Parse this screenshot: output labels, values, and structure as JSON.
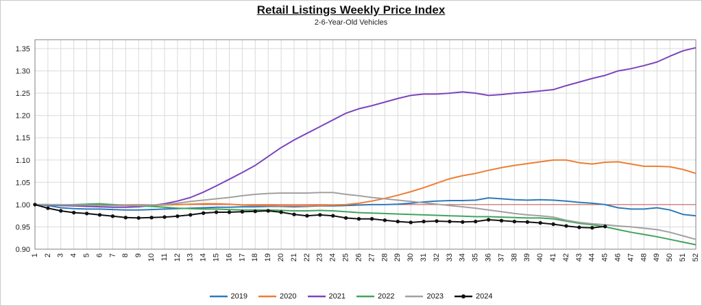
{
  "header": {
    "title": "Retail Listings Weekly Price Index",
    "subtitle": "2-6-Year-Old Vehicles"
  },
  "chart_data": {
    "type": "line",
    "title": "Retail Listings Weekly Price Index",
    "subtitle": "2-6-Year-Old Vehicles",
    "xlabel": "",
    "ylabel": "",
    "ylim": [
      0.9,
      1.37
    ],
    "yticks": [
      0.9,
      0.95,
      1.0,
      1.05,
      1.1,
      1.15,
      1.2,
      1.25,
      1.3,
      1.35
    ],
    "grid": true,
    "legend_position": "bottom",
    "ref_line": {
      "value": 1.0,
      "color": "#c0504d"
    },
    "colors": {
      "grid": "#d9d9d9",
      "plot_border": "#7f7f7f",
      "axis_text": "#1a1a1a"
    },
    "categories": [
      "1",
      "2",
      "3",
      "4",
      "5",
      "6",
      "7",
      "8",
      "9",
      "10",
      "11",
      "12",
      "13",
      "14",
      "15",
      "16",
      "17",
      "18",
      "19",
      "20",
      "21",
      "22",
      "23",
      "24",
      "25",
      "26",
      "27",
      "28",
      "29",
      "30",
      "31",
      "32",
      "33",
      "34",
      "35",
      "36",
      "37",
      "38",
      "39",
      "40",
      "41",
      "42",
      "43",
      "44",
      "45",
      "46",
      "47",
      "48",
      "49",
      "50",
      "51",
      "52"
    ],
    "series": [
      {
        "name": "2019",
        "color": "#2e79b8",
        "markers": false,
        "values": [
          1.0,
          0.998,
          0.993,
          0.991,
          0.99,
          0.99,
          0.989,
          0.988,
          0.988,
          0.989,
          0.99,
          0.991,
          0.992,
          0.993,
          0.994,
          0.994,
          0.995,
          0.995,
          0.996,
          0.996,
          0.995,
          0.996,
          0.997,
          0.997,
          0.998,
          0.999,
          1.0,
          1.0,
          1.001,
          1.003,
          1.006,
          1.008,
          1.009,
          1.009,
          1.01,
          1.015,
          1.013,
          1.011,
          1.01,
          1.011,
          1.01,
          1.008,
          1.005,
          1.003,
          1.0,
          0.993,
          0.99,
          0.99,
          0.993,
          0.988,
          0.978,
          0.975
        ]
      },
      {
        "name": "2020",
        "color": "#ed7d31",
        "markers": false,
        "values": [
          1.0,
          1.0,
          0.999,
          0.999,
          0.998,
          0.999,
          0.999,
          0.999,
          0.998,
          0.998,
          0.999,
          1.0,
          1.001,
          1.002,
          1.002,
          1.001,
          0.999,
          0.998,
          0.998,
          0.997,
          0.997,
          0.997,
          0.998,
          0.999,
          1.0,
          1.003,
          1.008,
          1.014,
          1.021,
          1.029,
          1.038,
          1.048,
          1.058,
          1.065,
          1.07,
          1.077,
          1.083,
          1.088,
          1.092,
          1.096,
          1.1,
          1.1,
          1.094,
          1.091,
          1.095,
          1.096,
          1.091,
          1.086,
          1.086,
          1.085,
          1.079,
          1.07
        ]
      },
      {
        "name": "2021",
        "color": "#7b43bd",
        "markers": false,
        "values": [
          1.0,
          0.999,
          0.998,
          0.997,
          0.996,
          0.995,
          0.994,
          0.994,
          0.995,
          0.998,
          1.002,
          1.008,
          1.016,
          1.028,
          1.042,
          1.057,
          1.072,
          1.088,
          1.108,
          1.128,
          1.145,
          1.16,
          1.175,
          1.19,
          1.205,
          1.215,
          1.222,
          1.23,
          1.238,
          1.245,
          1.248,
          1.248,
          1.25,
          1.253,
          1.25,
          1.245,
          1.247,
          1.25,
          1.252,
          1.255,
          1.258,
          1.267,
          1.275,
          1.283,
          1.29,
          1.3,
          1.305,
          1.312,
          1.32,
          1.333,
          1.345,
          1.352
        ]
      },
      {
        "name": "2022",
        "color": "#3fa45b",
        "markers": false,
        "values": [
          1.0,
          1.0,
          0.999,
          1.0,
          1.001,
          1.002,
          1.0,
          0.998,
          0.997,
          0.996,
          0.994,
          0.992,
          0.991,
          0.99,
          0.99,
          0.989,
          0.988,
          0.988,
          0.988,
          0.987,
          0.986,
          0.986,
          0.987,
          0.986,
          0.984,
          0.982,
          0.981,
          0.98,
          0.979,
          0.978,
          0.977,
          0.976,
          0.975,
          0.974,
          0.973,
          0.973,
          0.972,
          0.971,
          0.97,
          0.97,
          0.968,
          0.963,
          0.958,
          0.955,
          0.95,
          0.944,
          0.938,
          0.933,
          0.928,
          0.922,
          0.916,
          0.91
        ]
      },
      {
        "name": "2023",
        "color": "#a0a0a0",
        "markers": false,
        "values": [
          1.0,
          1.0,
          1.0,
          0.999,
          0.999,
          0.998,
          0.998,
          0.998,
          0.998,
          0.999,
          1.0,
          1.003,
          1.007,
          1.01,
          1.013,
          1.016,
          1.02,
          1.023,
          1.025,
          1.026,
          1.026,
          1.026,
          1.027,
          1.027,
          1.023,
          1.02,
          1.016,
          1.013,
          1.01,
          1.007,
          1.004,
          1.001,
          0.998,
          0.995,
          0.992,
          0.988,
          0.984,
          0.98,
          0.977,
          0.975,
          0.972,
          0.965,
          0.96,
          0.957,
          0.955,
          0.952,
          0.95,
          0.947,
          0.944,
          0.938,
          0.93,
          0.922
        ]
      },
      {
        "name": "2024",
        "color": "#111111",
        "markers": true,
        "values": [
          1.0,
          0.992,
          0.986,
          0.982,
          0.98,
          0.977,
          0.974,
          0.971,
          0.97,
          0.971,
          0.972,
          0.974,
          0.977,
          0.981,
          0.983,
          0.983,
          0.984,
          0.985,
          0.986,
          0.983,
          0.978,
          0.975,
          0.977,
          0.975,
          0.97,
          0.968,
          0.968,
          0.965,
          0.962,
          0.96,
          0.962,
          0.963,
          0.962,
          0.961,
          0.962,
          0.966,
          0.964,
          0.962,
          0.961,
          0.959,
          0.956,
          0.952,
          0.949,
          0.948,
          0.951
        ]
      }
    ]
  }
}
